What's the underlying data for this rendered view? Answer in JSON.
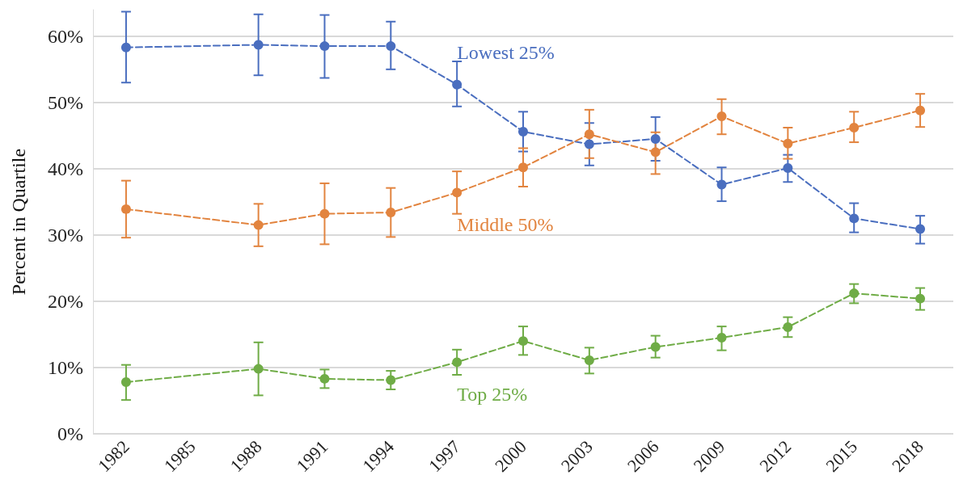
{
  "chart_data": {
    "type": "line",
    "ylabel": "Percent in Quartile",
    "x": [
      1982,
      1988,
      1991,
      1994,
      1997,
      2000,
      2003,
      2006,
      2009,
      2012,
      2015,
      2018
    ],
    "xlim": [
      1980.5,
      2019.5
    ],
    "xticks": [
      1982,
      1985,
      1988,
      1991,
      1994,
      1997,
      2000,
      2003,
      2006,
      2009,
      2012,
      2015,
      2018
    ],
    "ylim": [
      0,
      64
    ],
    "yticks": [
      {
        "value": 0,
        "label": "0%"
      },
      {
        "value": 10,
        "label": "10%"
      },
      {
        "value": 20,
        "label": "20%"
      },
      {
        "value": 30,
        "label": "30%"
      },
      {
        "value": 40,
        "label": "40%"
      },
      {
        "value": 50,
        "label": "50%"
      },
      {
        "value": 60,
        "label": "60%"
      }
    ],
    "grid": "y",
    "legend": false,
    "marker": "circle",
    "line_style": "dashed",
    "series": [
      {
        "name": "Lowest 25%",
        "color": "#4a6ebf",
        "values": [
          58.3,
          58.7,
          58.5,
          58.5,
          52.7,
          45.6,
          43.7,
          44.5,
          37.6,
          40.1,
          32.5,
          30.9
        ],
        "errors": [
          [
            53.0,
            63.7
          ],
          [
            54.1,
            63.3
          ],
          [
            53.7,
            63.2
          ],
          [
            55.0,
            62.2
          ],
          [
            49.4,
            56.2
          ],
          [
            42.6,
            48.6
          ],
          [
            40.5,
            46.9
          ],
          [
            41.2,
            47.8
          ],
          [
            35.1,
            40.2
          ],
          [
            38.0,
            42.1
          ],
          [
            30.4,
            34.8
          ],
          [
            28.7,
            32.9
          ]
        ]
      },
      {
        "name": "Middle 50%",
        "color": "#e2843f",
        "values": [
          33.9,
          31.5,
          33.2,
          33.4,
          36.4,
          40.2,
          45.2,
          42.5,
          47.9,
          43.8,
          46.2,
          48.8
        ],
        "errors": [
          [
            29.6,
            38.2
          ],
          [
            28.3,
            34.7
          ],
          [
            28.6,
            37.8
          ],
          [
            29.7,
            37.1
          ],
          [
            33.2,
            39.6
          ],
          [
            37.3,
            43.1
          ],
          [
            41.6,
            48.9
          ],
          [
            39.2,
            45.5
          ],
          [
            45.2,
            50.5
          ],
          [
            41.5,
            46.2
          ],
          [
            44.0,
            48.6
          ],
          [
            46.3,
            51.3
          ]
        ]
      },
      {
        "name": "Top 25%",
        "color": "#6fac46",
        "values": [
          7.8,
          9.8,
          8.3,
          8.1,
          10.8,
          14.0,
          11.1,
          13.1,
          14.5,
          16.1,
          21.2,
          20.4
        ],
        "errors": [
          [
            5.1,
            10.4
          ],
          [
            5.8,
            13.8
          ],
          [
            6.9,
            9.7
          ],
          [
            6.7,
            9.5
          ],
          [
            8.9,
            12.7
          ],
          [
            11.9,
            16.2
          ],
          [
            9.1,
            13.0
          ],
          [
            11.5,
            14.8
          ],
          [
            12.6,
            16.2
          ],
          [
            14.6,
            17.6
          ],
          [
            19.7,
            22.6
          ],
          [
            18.7,
            22.0
          ]
        ]
      }
    ]
  }
}
